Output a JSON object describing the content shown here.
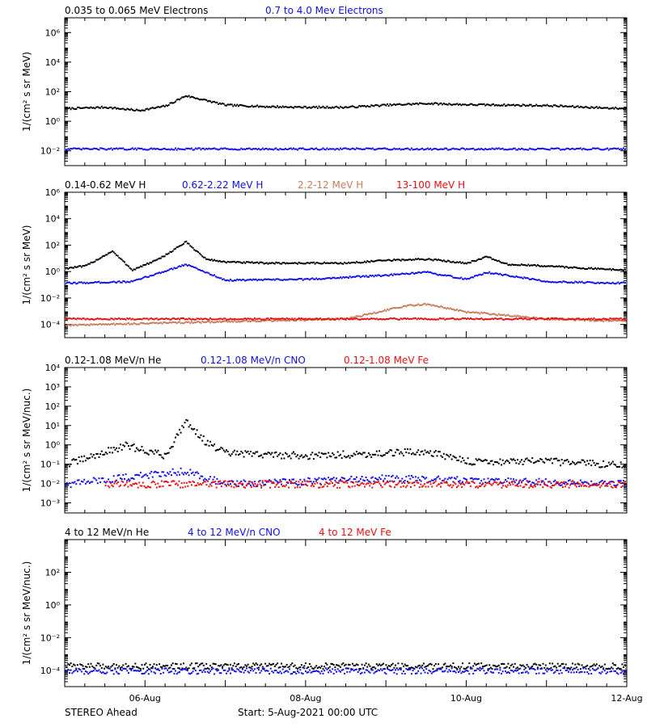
{
  "footer": {
    "spacecraft": "STEREO Ahead",
    "start_label": "Start:  5-Aug-2021 00:00 UTC"
  },
  "colors": {
    "black": "#000000",
    "blue": "#1010e8",
    "tan": "#c87c5c",
    "red": "#e81010"
  },
  "chart_data": [
    {
      "type": "scatter",
      "x_axis": {
        "type": "date",
        "range": [
          "2021-08-05T00:00",
          "2021-08-12T00:00"
        ],
        "ticks": [
          "06-Aug",
          "08-Aug",
          "10-Aug",
          "12-Aug"
        ]
      },
      "y_axis": {
        "scale": "log",
        "ylabel": "1/(cm² s sr MeV)",
        "range": [
          0.001,
          10000000.0
        ],
        "tick_labels": [
          "10⁻²",
          "10⁰",
          "10²",
          "10⁴",
          "10⁶"
        ]
      },
      "series": [
        {
          "name": "0.035 to 0.065 MeV Electrons",
          "color": "black",
          "x": [
            "2021-08-05T00:00",
            "2021-08-05T12:00",
            "2021-08-05T22:00",
            "2021-08-06T06:00",
            "2021-08-06T12:00",
            "2021-08-07T00:00",
            "2021-08-07T12:00",
            "2021-08-08T00:00",
            "2021-08-08T12:00",
            "2021-08-09T00:00",
            "2021-08-09T12:00",
            "2021-08-10T00:00",
            "2021-08-10T12:00",
            "2021-08-11T00:00",
            "2021-08-11T12:00",
            "2021-08-12T00:00"
          ],
          "y": [
            8,
            10,
            6,
            12,
            60,
            14,
            11,
            10,
            10,
            14,
            18,
            15,
            14,
            13,
            10,
            8
          ]
        },
        {
          "name": "0.7 to 4.0 Mev Electrons",
          "color": "blue",
          "x": [
            "2021-08-05T00:00",
            "2021-08-07T00:00",
            "2021-08-09T00:00",
            "2021-08-11T00:00",
            "2021-08-12T00:00"
          ],
          "y": [
            0.015,
            0.015,
            0.015,
            0.015,
            0.015
          ]
        }
      ]
    },
    {
      "type": "scatter",
      "x_axis": {
        "type": "date",
        "range": [
          "2021-08-05T00:00",
          "2021-08-12T00:00"
        ],
        "ticks": [
          "06-Aug",
          "08-Aug",
          "10-Aug",
          "12-Aug"
        ]
      },
      "y_axis": {
        "scale": "log",
        "ylabel": "1/(cm² s sr MeV)",
        "range": [
          1e-05,
          1000000.0
        ],
        "tick_labels": [
          "10⁻⁴",
          "10⁻²",
          "10⁰",
          "10²",
          "10⁴",
          "10⁶"
        ]
      },
      "series": [
        {
          "name": "0.14-0.62 MeV H",
          "color": "black",
          "x": [
            "2021-08-05T00:00",
            "2021-08-05T06:00",
            "2021-08-05T14:00",
            "2021-08-05T20:00",
            "2021-08-06T04:00",
            "2021-08-06T12:00",
            "2021-08-06T18:00",
            "2021-08-07T00:00",
            "2021-08-07T12:00",
            "2021-08-08T00:00",
            "2021-08-08T12:00",
            "2021-08-09T00:00",
            "2021-08-09T12:00",
            "2021-08-10T00:00",
            "2021-08-10T06:00",
            "2021-08-10T12:00",
            "2021-08-11T00:00",
            "2021-08-11T12:00",
            "2021-08-12T00:00"
          ],
          "y": [
            2,
            3,
            40,
            1.5,
            10,
            200,
            10,
            6,
            5,
            5,
            5,
            8,
            10,
            5,
            15,
            4,
            3,
            2,
            1.5
          ]
        },
        {
          "name": "0.62-2.22 MeV H",
          "color": "blue",
          "x": [
            "2021-08-05T00:00",
            "2021-08-05T20:00",
            "2021-08-06T12:00",
            "2021-08-07T00:00",
            "2021-08-08T00:00",
            "2021-08-09T00:00",
            "2021-08-09T12:00",
            "2021-08-10T00:00",
            "2021-08-10T06:00",
            "2021-08-11T00:00",
            "2021-08-12T00:00"
          ],
          "y": [
            0.15,
            0.2,
            4,
            0.25,
            0.3,
            0.6,
            1,
            0.3,
            1,
            0.2,
            0.15
          ]
        },
        {
          "name": "2.2-12 MeV H",
          "color": "tan",
          "x": [
            "2021-08-05T00:00",
            "2021-08-08T12:00",
            "2021-08-09T06:00",
            "2021-08-09T12:00",
            "2021-08-10T00:00",
            "2021-08-11T00:00",
            "2021-08-12T00:00"
          ],
          "y": [
            0.0001,
            0.0003,
            0.003,
            0.004,
            0.001,
            0.0003,
            0.0002
          ]
        },
        {
          "name": "13-100 MeV H",
          "color": "red",
          "x": [
            "2021-08-05T00:00",
            "2021-08-07T00:00",
            "2021-08-09T00:00",
            "2021-08-11T00:00",
            "2021-08-12T00:00"
          ],
          "y": [
            0.0003,
            0.0003,
            0.0003,
            0.0003,
            0.0003
          ]
        }
      ]
    },
    {
      "type": "scatter",
      "x_axis": {
        "type": "date",
        "range": [
          "2021-08-05T00:00",
          "2021-08-12T00:00"
        ],
        "ticks": [
          "06-Aug",
          "08-Aug",
          "10-Aug",
          "12-Aug"
        ]
      },
      "y_axis": {
        "scale": "log",
        "ylabel": "1/(cm² s sr MeV/nuc.)",
        "range": [
          0.0003,
          10000.0
        ],
        "tick_labels": [
          "10⁻³",
          "10⁻²",
          "10⁻¹",
          "10⁰",
          "10¹",
          "10²",
          "10³",
          "10⁴"
        ]
      },
      "series": [
        {
          "name": "0.12-1.08 MeV/n He",
          "color": "black",
          "x": [
            "2021-08-05T00:00",
            "2021-08-05T18:00",
            "2021-08-06T06:00",
            "2021-08-06T12:00",
            "2021-08-06T18:00",
            "2021-08-07T00:00",
            "2021-08-08T00:00",
            "2021-08-09T00:00",
            "2021-08-09T12:00",
            "2021-08-10T00:00",
            "2021-08-11T00:00",
            "2021-08-12T00:00"
          ],
          "y": [
            0.1,
            1,
            0.3,
            20,
            1.5,
            0.4,
            0.3,
            0.4,
            0.5,
            0.15,
            0.15,
            0.1
          ]
        },
        {
          "name": "0.12-1.08 MeV/n CNO",
          "color": "blue",
          "x": [
            "2021-08-05T00:00",
            "2021-08-06T12:00",
            "2021-08-07T00:00",
            "2021-08-09T00:00",
            "2021-08-12T00:00"
          ],
          "y": [
            0.01,
            0.05,
            0.01,
            0.02,
            0.01
          ]
        },
        {
          "name": "0.12-1.08 MeV Fe",
          "color": "red",
          "x": [
            "2021-08-05T12:00",
            "2021-08-07T00:00",
            "2021-08-09T00:00",
            "2021-08-12T00:00"
          ],
          "y": [
            0.01,
            0.01,
            0.01,
            0.01
          ]
        }
      ]
    },
    {
      "type": "scatter",
      "x_axis": {
        "type": "date",
        "range": [
          "2021-08-05T00:00",
          "2021-08-12T00:00"
        ],
        "ticks": [
          "06-Aug",
          "08-Aug",
          "10-Aug",
          "12-Aug"
        ]
      },
      "y_axis": {
        "scale": "log",
        "ylabel": "1/(cm² s sr MeV/nuc.)",
        "range": [
          1e-05,
          10000.0
        ],
        "tick_labels": [
          "10⁻⁴",
          "10⁻²",
          "10⁰",
          "10²"
        ]
      },
      "series": [
        {
          "name": "4 to 12 MeV/n He",
          "color": "black",
          "x": [
            "2021-08-05T00:00",
            "2021-08-07T00:00",
            "2021-08-09T00:00",
            "2021-08-11T00:00",
            "2021-08-12T00:00"
          ],
          "y": [
            0.0002,
            0.0002,
            0.0002,
            0.0002,
            0.0002
          ]
        },
        {
          "name": "4 to 12 MeV/n CNO",
          "color": "blue",
          "x": [
            "2021-08-05T00:00",
            "2021-08-07T00:00",
            "2021-08-09T00:00",
            "2021-08-11T00:00",
            "2021-08-12T00:00"
          ],
          "y": [
            0.0001,
            0.0001,
            0.0001,
            0.0001,
            0.0001
          ]
        },
        {
          "name": "4 to 12 MeV Fe",
          "color": "red",
          "x": [],
          "y": []
        }
      ]
    }
  ]
}
